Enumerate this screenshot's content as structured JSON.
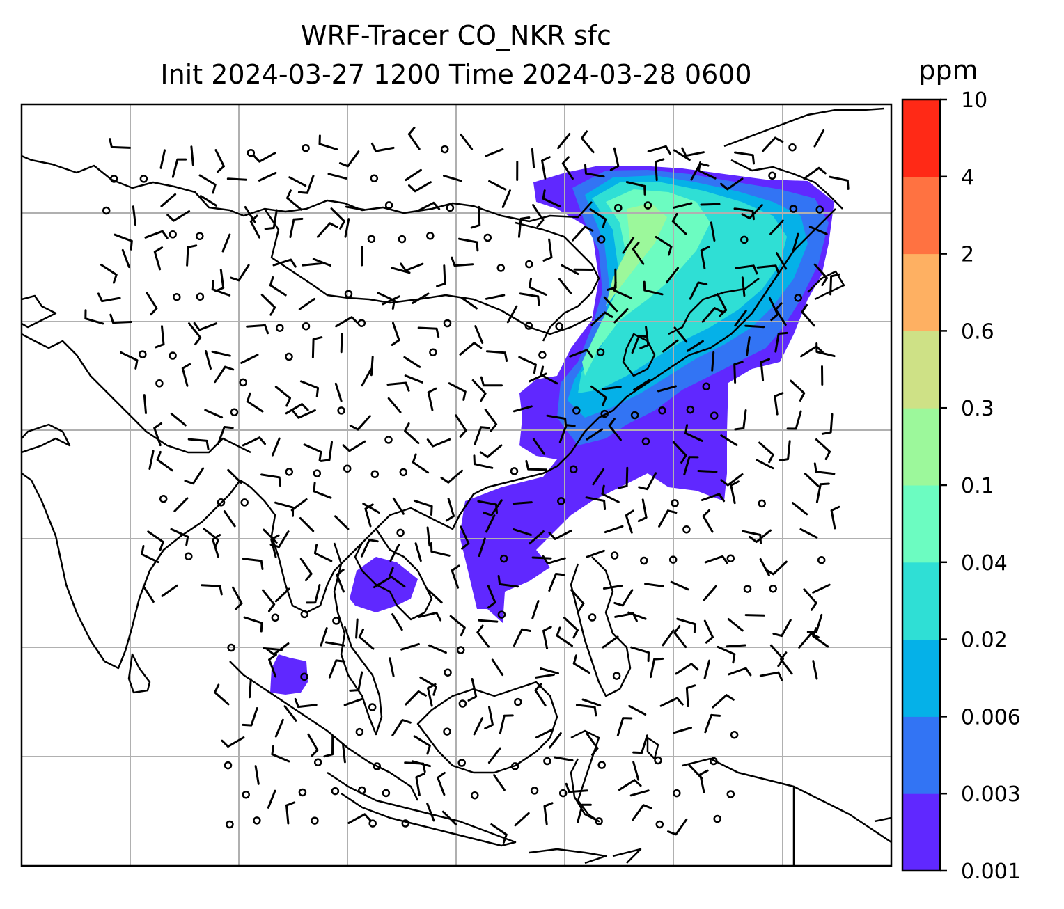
{
  "title": {
    "line1": "WRF-Tracer CO_NKR sfc",
    "line2": "Init 2024-03-27 1200 Time 2024-03-28 0600"
  },
  "colorbar": {
    "unit": "ppm",
    "levels": [
      "0.001",
      "0.003",
      "0.006",
      "0.02",
      "0.04",
      "0.1",
      "0.3",
      "0.6",
      "2",
      "4",
      "10"
    ],
    "colors": [
      "#6028ff",
      "#3274f4",
      "#05b1e8",
      "#2fdfd5",
      "#6cfcc1",
      "#9cf89b",
      "#cee186",
      "#feb062",
      "#ff7241",
      "#ff2916"
    ]
  },
  "map": {
    "features": [
      "coastlines",
      "country borders",
      "lat/lon gridlines",
      "surface wind barbs",
      "calm-wind circles",
      "CO_NKR tracer concentration shading"
    ]
  }
}
